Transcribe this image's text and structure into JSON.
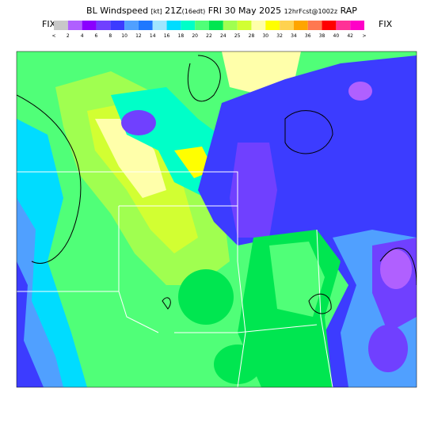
{
  "header": {
    "parameter": "BL Windspeed",
    "unit": "[kt]",
    "time": "21Z",
    "local_time": "(16edt)",
    "date": "FRI 30 May 2025",
    "forecast": "12hrFcst@1002z",
    "model": "RAP"
  },
  "legend": {
    "left_label": "FIX",
    "right_label": "FIX",
    "labels": [
      "<",
      "2",
      "4",
      "6",
      "8",
      "10",
      "12",
      "14",
      "16",
      "18",
      "20",
      "22",
      "24",
      "25",
      "28",
      "30",
      "32",
      "34",
      "36",
      "38",
      "40",
      "42",
      ">"
    ]
  }
}
